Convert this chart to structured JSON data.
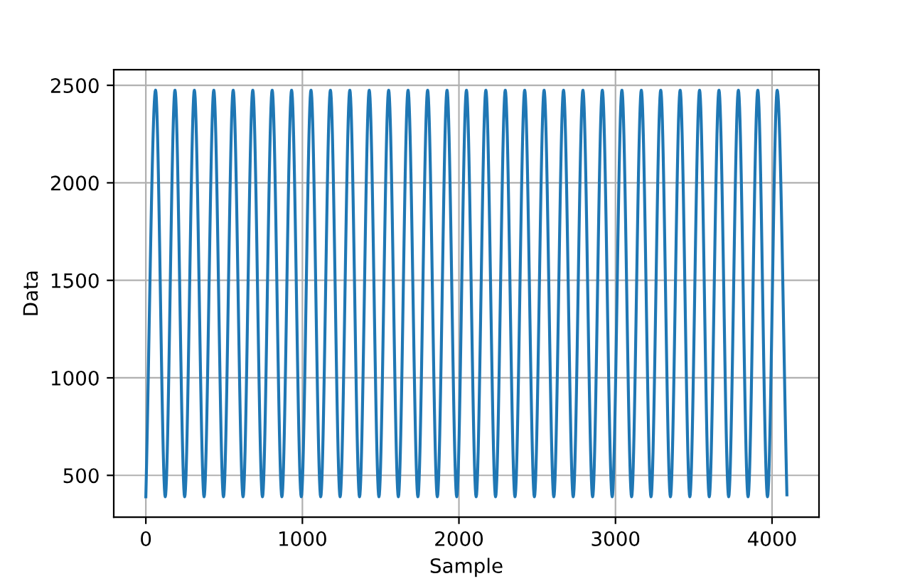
{
  "chart_data": {
    "type": "line",
    "xlabel": "Sample",
    "ylabel": "Data",
    "x": [
      0,
      62,
      124,
      186,
      248,
      310,
      372,
      434,
      496,
      558,
      621,
      683,
      745,
      807,
      869,
      931,
      993,
      1055,
      1117,
      1179,
      1241,
      1303,
      1365,
      1427,
      1489,
      1551,
      1613,
      1675,
      1738,
      1800,
      1862,
      1924,
      1986,
      2048,
      2110,
      2172,
      2234,
      2296,
      2358,
      2420,
      2482,
      2544,
      2606,
      2668,
      2730,
      2792,
      2854,
      2916,
      2979,
      3041,
      3103,
      3165,
      3227,
      3289,
      3351,
      3413,
      3475,
      3537,
      3599,
      3661,
      3723,
      3785,
      3847,
      3909,
      3971,
      4033,
      4095
    ],
    "series": [
      {
        "color": "#1f77b4",
        "values": [
          390,
          2475,
          390,
          2475,
          390,
          2475,
          390,
          2475,
          390,
          2475,
          390,
          2475,
          390,
          2475,
          390,
          2475,
          390,
          2475,
          390,
          2475,
          390,
          2475,
          390,
          2475,
          390,
          2475,
          390,
          2475,
          390,
          2475,
          390,
          2475,
          390,
          2475,
          390,
          2475,
          390,
          2475,
          390,
          2475,
          390,
          2475,
          390,
          2475,
          390,
          2475,
          390,
          2475,
          390,
          2475,
          390,
          2475,
          390,
          2475,
          390,
          2475,
          390,
          2475,
          390,
          2475,
          390,
          2475,
          390,
          2475,
          390,
          2475,
          400
        ]
      }
    ],
    "xlim": [
      -205,
      4300
    ],
    "ylim": [
      286,
      2580
    ],
    "xticks": [
      0,
      1000,
      2000,
      3000,
      4000
    ],
    "yticks": [
      500,
      1000,
      1500,
      2000,
      2500
    ],
    "grid": true,
    "line_style": "solid",
    "marker": "none"
  }
}
